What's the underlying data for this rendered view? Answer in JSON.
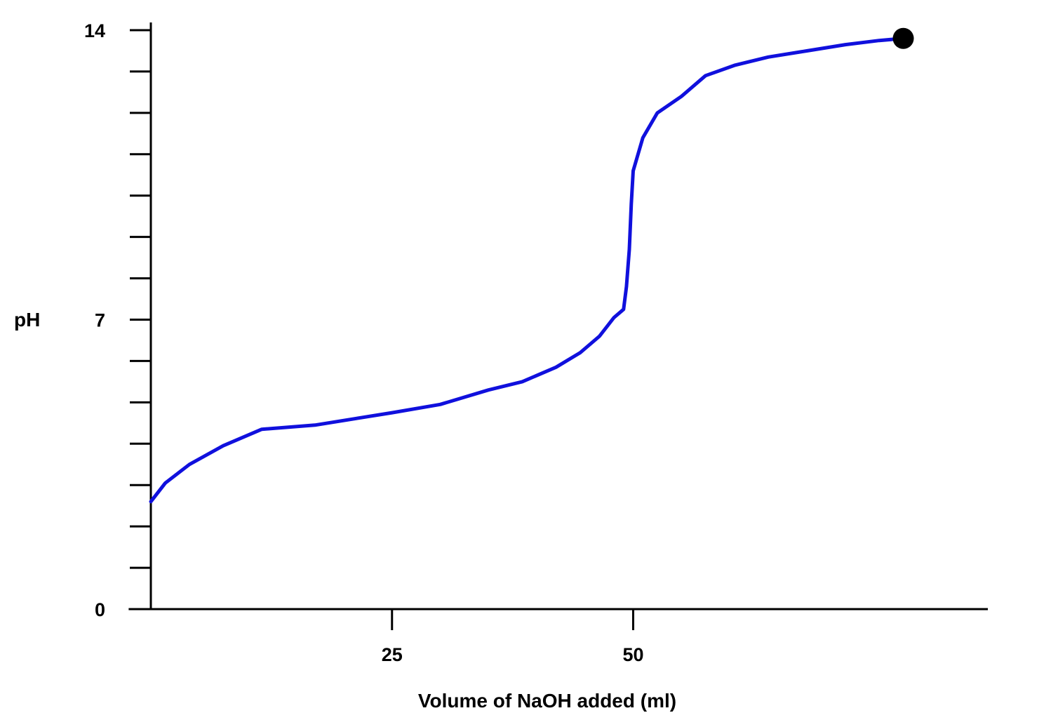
{
  "chart_data": {
    "type": "line",
    "title": "",
    "xlabel": "Volume of NaOH added (ml)",
    "ylabel": "pH",
    "xlim": [
      -2.3,
      87
    ],
    "ylim": [
      0,
      14
    ],
    "x_ticks": [
      {
        "value": 25,
        "label": "25"
      },
      {
        "value": 50,
        "label": "50"
      }
    ],
    "y_ticks": [
      {
        "value": 0,
        "label": "0"
      },
      {
        "value": 7,
        "label": "7"
      },
      {
        "value": 14,
        "label": "14"
      }
    ],
    "y_minor_ticks": [
      1,
      2,
      3,
      4,
      5,
      6,
      8,
      9,
      10,
      11,
      12,
      13
    ],
    "grid": false,
    "legend": "none",
    "series": [
      {
        "color": "#1010dd",
        "x": [
          0,
          1.5,
          4,
          7.5,
          11.5,
          17,
          25,
          30,
          35,
          38.5,
          42,
          44.5,
          46.5,
          48,
          49,
          49.3,
          49.6,
          49.8,
          50,
          51,
          52.5,
          55,
          57.5,
          60.5,
          64,
          68,
          72,
          75.5,
          78
        ],
        "y": [
          2.6,
          3.05,
          3.5,
          3.95,
          4.35,
          4.45,
          4.75,
          4.95,
          5.3,
          5.5,
          5.85,
          6.2,
          6.6,
          7.05,
          7.25,
          7.8,
          8.7,
          9.8,
          10.6,
          11.4,
          12.0,
          12.4,
          12.9,
          13.15,
          13.35,
          13.5,
          13.65,
          13.75,
          13.8
        ]
      }
    ],
    "endpoint_marker": {
      "x": 78,
      "y": 13.8,
      "color": "#000000"
    },
    "axis_color": "#000000"
  }
}
